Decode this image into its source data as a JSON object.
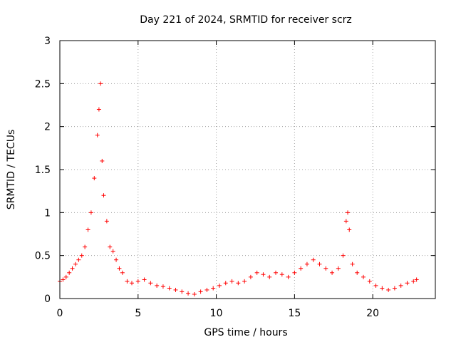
{
  "chart_data": {
    "type": "scatter",
    "title": "Day 221 of 2024, SRMTID for receiver scrz",
    "xlabel": "GPS time / hours",
    "ylabel": "SRMTID / TECUs",
    "xlim": [
      0,
      24
    ],
    "ylim": [
      0,
      3
    ],
    "xticks": [
      0,
      5,
      10,
      15,
      20
    ],
    "yticks": [
      0,
      0.5,
      1,
      1.5,
      2,
      2.5,
      3
    ],
    "xtick_labels": [
      "0",
      "5",
      "10",
      "15",
      "20"
    ],
    "ytick_labels": [
      "0",
      "0.5",
      "1",
      "1.5",
      "2",
      "2.5",
      "3"
    ],
    "grid": true,
    "marker": "+",
    "series": [
      {
        "name": "SRMTID",
        "color": "#ff0000",
        "x": [
          0.0,
          0.2,
          0.4,
          0.6,
          0.8,
          1.0,
          1.2,
          1.4,
          1.6,
          1.8,
          2.0,
          2.2,
          2.4,
          2.5,
          2.6,
          2.7,
          2.8,
          3.0,
          3.2,
          3.4,
          3.6,
          3.8,
          4.0,
          4.3,
          4.6,
          5.0,
          5.4,
          5.8,
          6.2,
          6.6,
          7.0,
          7.4,
          7.8,
          8.2,
          8.6,
          9.0,
          9.4,
          9.8,
          10.2,
          10.6,
          11.0,
          11.4,
          11.8,
          12.2,
          12.6,
          13.0,
          13.4,
          13.8,
          14.2,
          14.6,
          15.0,
          15.4,
          15.8,
          16.2,
          16.6,
          17.0,
          17.4,
          17.8,
          18.1,
          18.3,
          18.4,
          18.5,
          18.7,
          19.0,
          19.4,
          19.8,
          20.2,
          20.6,
          21.0,
          21.4,
          21.8,
          22.2,
          22.6,
          22.8
        ],
        "y": [
          0.2,
          0.22,
          0.25,
          0.3,
          0.35,
          0.4,
          0.45,
          0.5,
          0.6,
          0.8,
          1.0,
          1.4,
          1.9,
          2.2,
          2.5,
          1.6,
          1.2,
          0.9,
          0.6,
          0.55,
          0.45,
          0.35,
          0.3,
          0.2,
          0.18,
          0.2,
          0.22,
          0.18,
          0.15,
          0.14,
          0.12,
          0.1,
          0.08,
          0.06,
          0.05,
          0.08,
          0.1,
          0.12,
          0.15,
          0.18,
          0.2,
          0.18,
          0.2,
          0.25,
          0.3,
          0.28,
          0.25,
          0.3,
          0.28,
          0.25,
          0.3,
          0.35,
          0.4,
          0.45,
          0.4,
          0.35,
          0.3,
          0.35,
          0.5,
          0.9,
          1.0,
          0.8,
          0.4,
          0.3,
          0.25,
          0.2,
          0.15,
          0.12,
          0.1,
          0.12,
          0.15,
          0.18,
          0.2,
          0.22
        ]
      }
    ]
  }
}
